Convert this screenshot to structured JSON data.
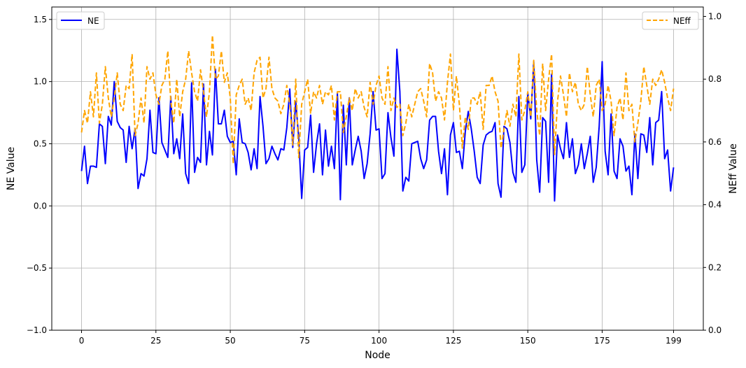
{
  "chart_data": {
    "type": "line",
    "xlabel": "Node",
    "ylabel": "NE Value",
    "y2label": "NEff Value",
    "xlim": [
      -10,
      209
    ],
    "ylim": [
      -1.0,
      1.6
    ],
    "y2lim": [
      0.0,
      1.03
    ],
    "x_ticks": [
      0,
      25,
      50,
      75,
      100,
      125,
      150,
      175,
      199
    ],
    "x_tick_labels": [
      "0",
      "25",
      "50",
      "75",
      "100",
      "125",
      "150",
      "175",
      "199"
    ],
    "y_ticks": [
      -1.0,
      -0.5,
      0.0,
      0.5,
      1.0,
      1.5
    ],
    "y_tick_labels": [
      "−1.0",
      "−0.5",
      "0.0",
      "0.5",
      "1.0",
      "1.5"
    ],
    "y2_ticks": [
      0.0,
      0.2,
      0.4,
      0.6,
      0.8,
      1.0
    ],
    "y2_tick_labels": [
      "0.0",
      "0.2",
      "0.4",
      "0.6",
      "0.8",
      "1.0"
    ],
    "grid": true,
    "x": [
      0,
      1,
      2,
      3,
      4,
      5,
      6,
      7,
      8,
      9,
      10,
      11,
      12,
      13,
      14,
      15,
      16,
      17,
      18,
      19,
      20,
      21,
      22,
      23,
      24,
      25,
      26,
      27,
      28,
      29,
      30,
      31,
      32,
      33,
      34,
      35,
      36,
      37,
      38,
      39,
      40,
      41,
      42,
      43,
      44,
      45,
      46,
      47,
      48,
      49,
      50,
      51,
      52,
      53,
      54,
      55,
      56,
      57,
      58,
      59,
      60,
      61,
      62,
      63,
      64,
      65,
      66,
      67,
      68,
      69,
      70,
      71,
      72,
      73,
      74,
      75,
      76,
      77,
      78,
      79,
      80,
      81,
      82,
      83,
      84,
      85,
      86,
      87,
      88,
      89,
      90,
      91,
      92,
      93,
      94,
      95,
      96,
      97,
      98,
      99,
      100,
      101,
      102,
      103,
      104,
      105,
      106,
      107,
      108,
      109,
      110,
      111,
      112,
      113,
      114,
      115,
      116,
      117,
      118,
      119,
      120,
      121,
      122,
      123,
      124,
      125,
      126,
      127,
      128,
      129,
      130,
      131,
      132,
      133,
      134,
      135,
      136,
      137,
      138,
      139,
      140,
      141,
      142,
      143,
      144,
      145,
      146,
      147,
      148,
      149,
      150,
      151,
      152,
      153,
      154,
      155,
      156,
      157,
      158,
      159,
      160,
      161,
      162,
      163,
      164,
      165,
      166,
      167,
      168,
      169,
      170,
      171,
      172,
      173,
      174,
      175,
      176,
      177,
      178,
      179,
      180,
      181,
      182,
      183,
      184,
      185,
      186,
      187,
      188,
      189,
      190,
      191,
      192,
      193,
      194,
      195,
      196,
      197,
      198,
      199
    ],
    "series": [
      {
        "name": "NE",
        "axis": "left",
        "color": "#0000ff",
        "style": "solid",
        "values": [
          0.28,
          0.48,
          0.18,
          0.32,
          0.32,
          0.31,
          0.66,
          0.64,
          0.34,
          0.72,
          0.65,
          1.0,
          0.68,
          0.63,
          0.61,
          0.35,
          0.64,
          0.46,
          0.62,
          0.14,
          0.26,
          0.24,
          0.38,
          0.77,
          0.43,
          0.42,
          0.87,
          0.51,
          0.45,
          0.39,
          0.88,
          0.42,
          0.54,
          0.38,
          0.74,
          0.26,
          0.18,
          0.99,
          0.27,
          0.39,
          0.35,
          0.98,
          0.33,
          0.6,
          0.41,
          1.1,
          0.66,
          0.66,
          0.77,
          0.56,
          0.51,
          0.52,
          0.25,
          0.7,
          0.51,
          0.5,
          0.43,
          0.29,
          0.46,
          0.3,
          0.88,
          0.64,
          0.34,
          0.38,
          0.48,
          0.42,
          0.37,
          0.46,
          0.45,
          0.63,
          0.94,
          0.47,
          0.84,
          0.55,
          0.06,
          0.45,
          0.47,
          0.73,
          0.27,
          0.5,
          0.66,
          0.25,
          0.61,
          0.32,
          0.48,
          0.3,
          0.91,
          0.05,
          0.81,
          0.33,
          0.87,
          0.33,
          0.45,
          0.56,
          0.44,
          0.22,
          0.34,
          0.58,
          0.92,
          0.61,
          0.62,
          0.22,
          0.26,
          0.75,
          0.55,
          0.4,
          1.26,
          0.92,
          0.12,
          0.23,
          0.2,
          0.5,
          0.51,
          0.52,
          0.38,
          0.3,
          0.37,
          0.69,
          0.72,
          0.72,
          0.44,
          0.26,
          0.46,
          0.09,
          0.57,
          0.67,
          0.43,
          0.44,
          0.3,
          0.6,
          0.76,
          0.62,
          0.44,
          0.23,
          0.18,
          0.49,
          0.57,
          0.59,
          0.6,
          0.67,
          0.18,
          0.07,
          0.64,
          0.62,
          0.51,
          0.27,
          0.19,
          0.88,
          0.27,
          0.33,
          0.91,
          0.7,
          1.16,
          0.37,
          0.11,
          0.71,
          0.68,
          0.19,
          1.06,
          0.04,
          0.57,
          0.46,
          0.38,
          0.67,
          0.39,
          0.54,
          0.26,
          0.33,
          0.5,
          0.3,
          0.42,
          0.56,
          0.19,
          0.31,
          0.64,
          1.16,
          0.44,
          0.25,
          0.74,
          0.28,
          0.22,
          0.54,
          0.48,
          0.28,
          0.32,
          0.09,
          0.58,
          0.22,
          0.58,
          0.57,
          0.43,
          0.71,
          0.33,
          0.67,
          0.69,
          0.92,
          0.38,
          0.45,
          0.12,
          0.31
        ]
      },
      {
        "name": "NEff",
        "axis": "right",
        "color": "#ffa500",
        "style": "dashed",
        "values": [
          0.63,
          0.7,
          0.66,
          0.76,
          0.68,
          0.82,
          0.66,
          0.72,
          0.84,
          0.74,
          0.68,
          0.74,
          0.82,
          0.72,
          0.7,
          0.78,
          0.77,
          0.88,
          0.62,
          0.66,
          0.74,
          0.66,
          0.84,
          0.8,
          0.82,
          0.75,
          0.72,
          0.78,
          0.8,
          0.89,
          0.73,
          0.66,
          0.8,
          0.68,
          0.76,
          0.8,
          0.89,
          0.82,
          0.76,
          0.73,
          0.83,
          0.76,
          0.68,
          0.76,
          0.94,
          0.8,
          0.81,
          0.89,
          0.79,
          0.82,
          0.74,
          0.53,
          0.75,
          0.78,
          0.8,
          0.72,
          0.74,
          0.7,
          0.82,
          0.86,
          0.87,
          0.74,
          0.77,
          0.87,
          0.77,
          0.74,
          0.73,
          0.69,
          0.72,
          0.78,
          0.72,
          0.59,
          0.8,
          0.55,
          0.72,
          0.76,
          0.8,
          0.69,
          0.76,
          0.74,
          0.78,
          0.72,
          0.76,
          0.75,
          0.78,
          0.67,
          0.76,
          0.76,
          0.63,
          0.68,
          0.74,
          0.7,
          0.77,
          0.74,
          0.76,
          0.71,
          0.68,
          0.79,
          0.72,
          0.78,
          0.81,
          0.74,
          0.72,
          0.84,
          0.7,
          0.74,
          0.71,
          0.72,
          0.62,
          0.66,
          0.72,
          0.68,
          0.72,
          0.76,
          0.77,
          0.73,
          0.68,
          0.85,
          0.82,
          0.73,
          0.76,
          0.74,
          0.67,
          0.79,
          0.88,
          0.7,
          0.81,
          0.72,
          0.58,
          0.68,
          0.64,
          0.74,
          0.74,
          0.72,
          0.76,
          0.64,
          0.78,
          0.78,
          0.81,
          0.76,
          0.73,
          0.58,
          0.64,
          0.7,
          0.65,
          0.72,
          0.68,
          0.88,
          0.67,
          0.7,
          0.76,
          0.68,
          0.86,
          0.7,
          0.62,
          0.85,
          0.7,
          0.8,
          0.88,
          0.56,
          0.73,
          0.81,
          0.75,
          0.68,
          0.82,
          0.76,
          0.79,
          0.72,
          0.7,
          0.72,
          0.84,
          0.75,
          0.68,
          0.78,
          0.8,
          0.7,
          0.72,
          0.78,
          0.73,
          0.62,
          0.71,
          0.74,
          0.67,
          0.82,
          0.7,
          0.72,
          0.6,
          0.66,
          0.73,
          0.84,
          0.78,
          0.72,
          0.8,
          0.78,
          0.8,
          0.83,
          0.79,
          0.74,
          0.7,
          0.77
        ]
      }
    ],
    "legend_left": {
      "label": "NE",
      "position": "upper-left"
    },
    "legend_right": {
      "label": "NEff",
      "position": "upper-right"
    }
  }
}
